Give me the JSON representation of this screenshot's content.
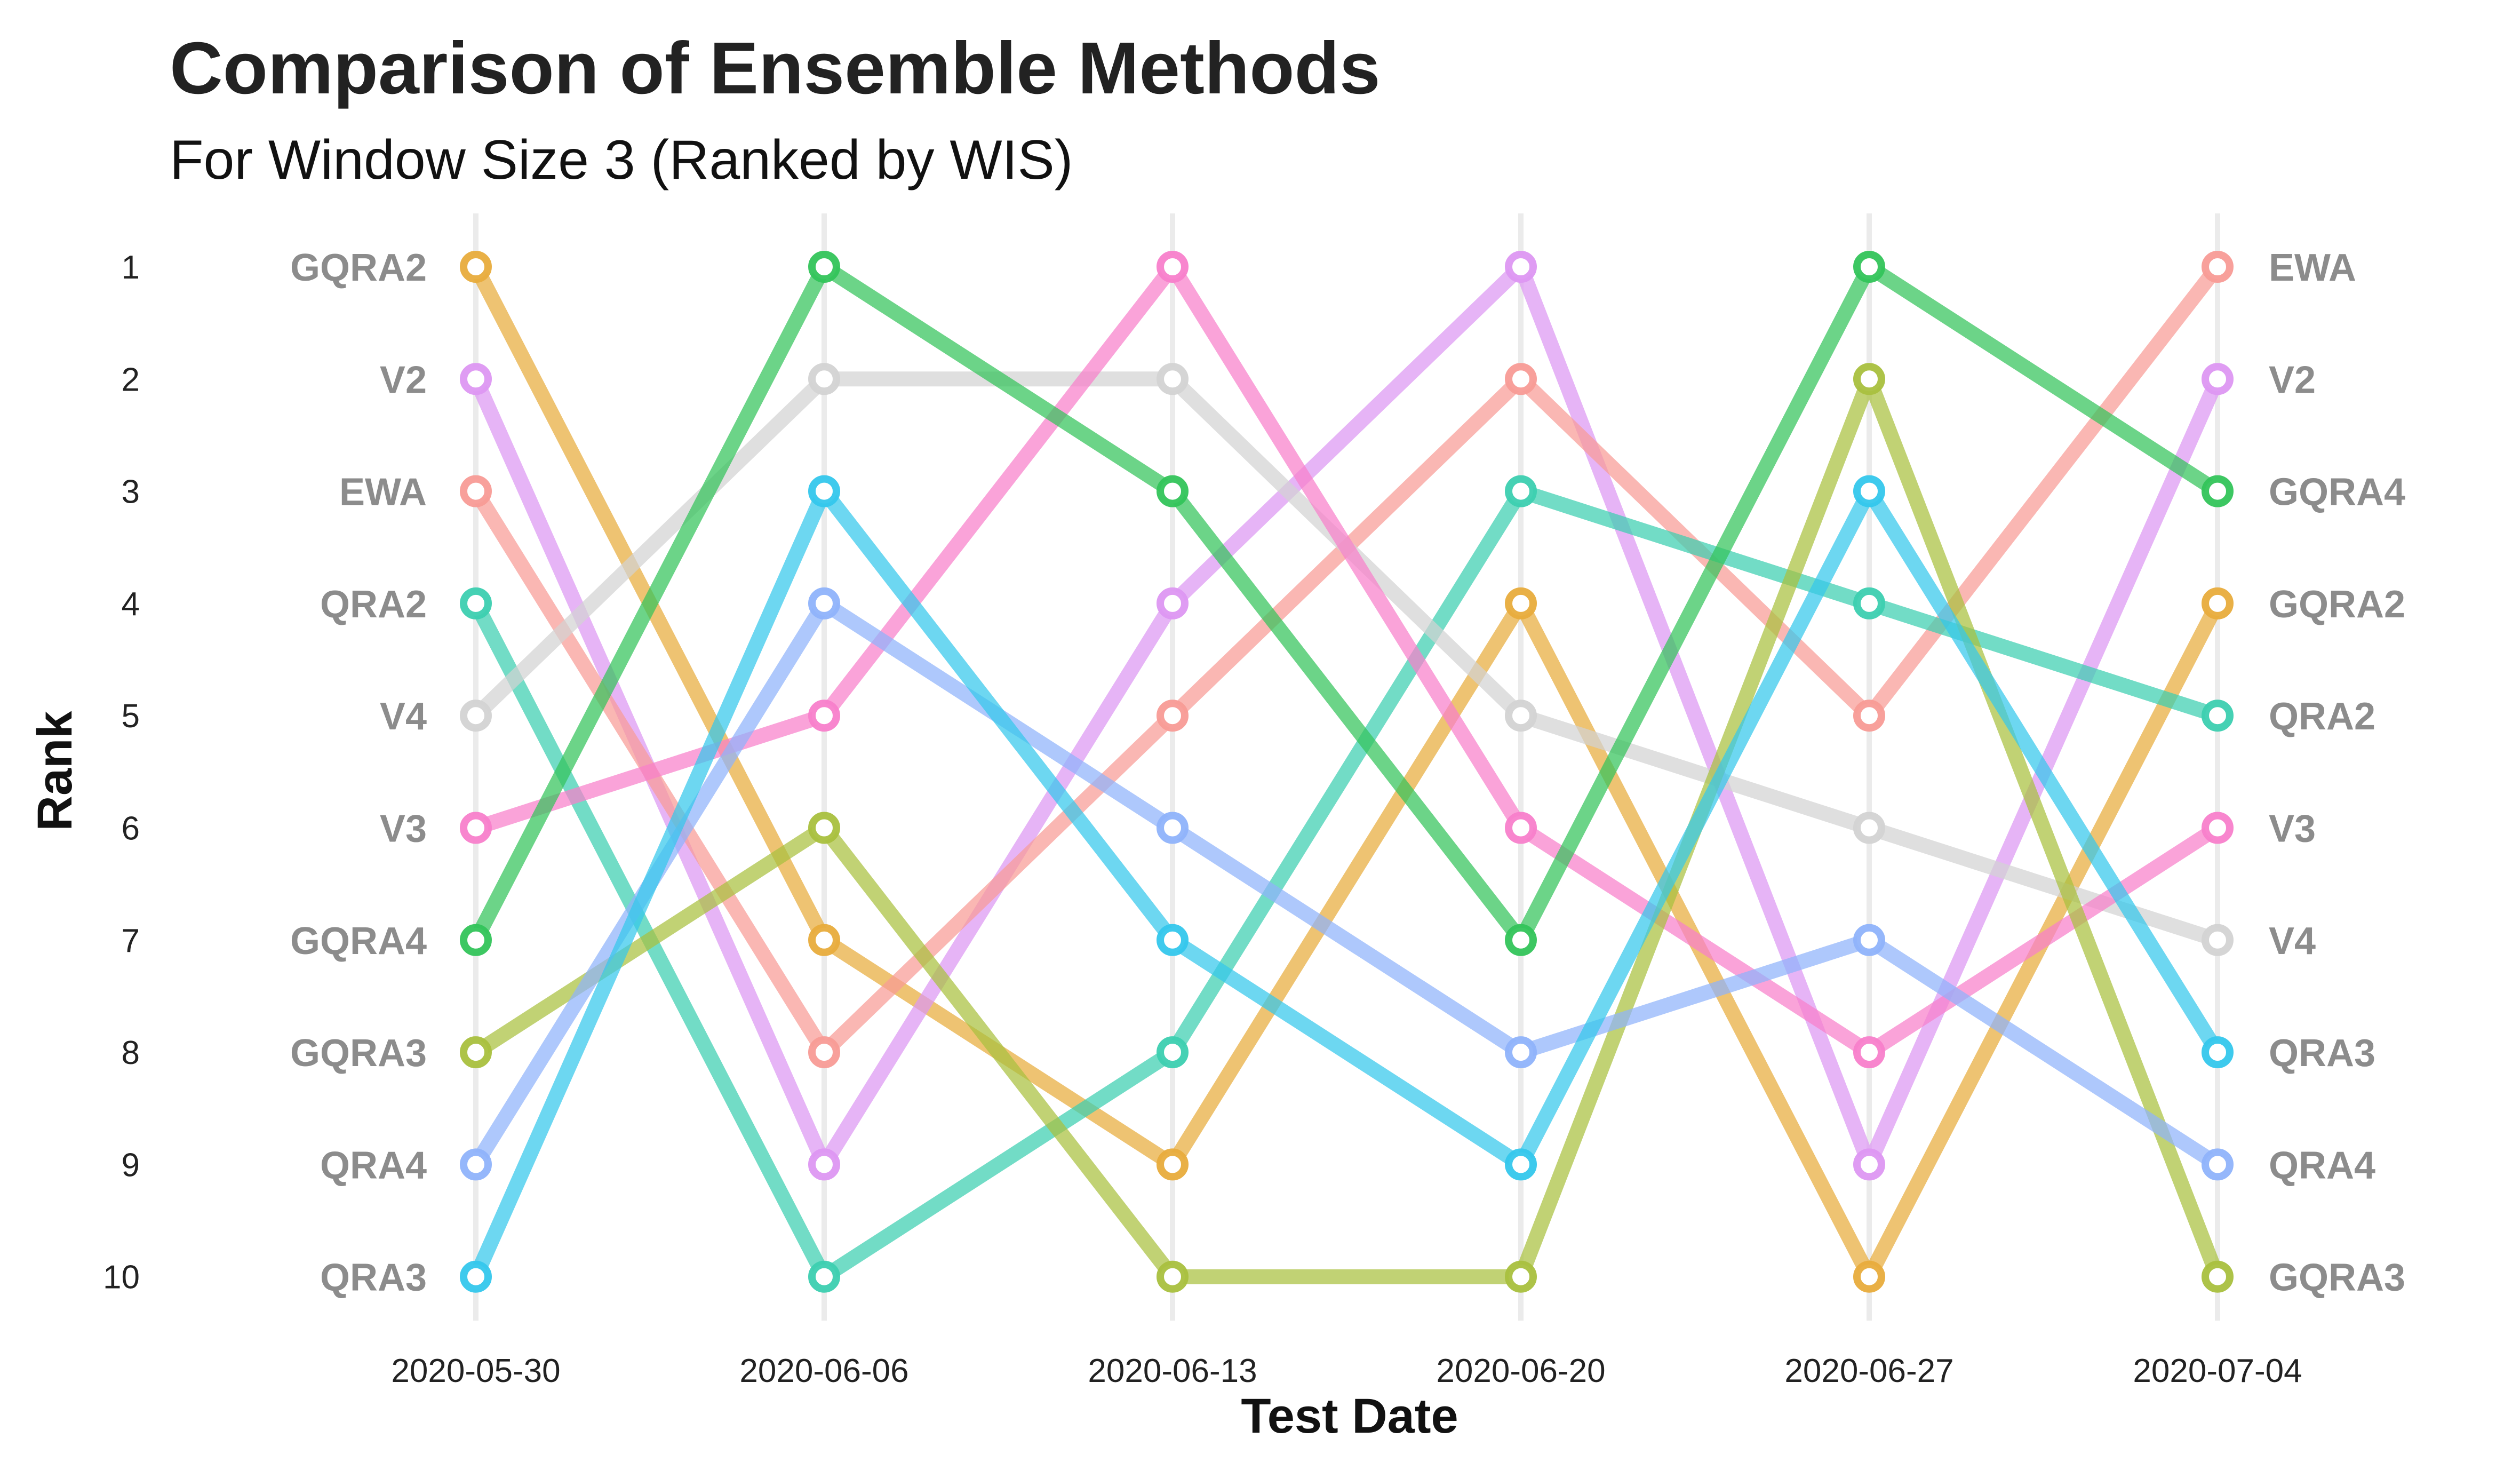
{
  "chart_data": {
    "type": "line",
    "title": "Comparison of Ensemble Methods",
    "subtitle": "For Window Size 3 (Ranked by WIS)",
    "xlabel": "Test Date",
    "ylabel": "Rank",
    "x": [
      "2020-05-30",
      "2020-06-06",
      "2020-06-13",
      "2020-06-20",
      "2020-06-27",
      "2020-07-04"
    ],
    "y_ticks": [
      "1",
      "2",
      "3",
      "4",
      "5",
      "6",
      "7",
      "8",
      "9",
      "10"
    ],
    "ylim": [
      1,
      10
    ],
    "y_reversed": true,
    "grid": "vertical",
    "legend": "none",
    "series": [
      {
        "name": "GQRA2",
        "color": "#e8ac3c",
        "values": [
          1,
          7,
          9,
          4,
          10,
          4
        ]
      },
      {
        "name": "V2",
        "color": "#dd97f2",
        "values": [
          2,
          9,
          4,
          1,
          9,
          2
        ]
      },
      {
        "name": "EWA",
        "color": "#f89b96",
        "values": [
          3,
          8,
          5,
          2,
          5,
          1
        ]
      },
      {
        "name": "QRA2",
        "color": "#3ccfb0",
        "values": [
          4,
          10,
          8,
          3,
          4,
          5
        ]
      },
      {
        "name": "V4",
        "color": "#d3d3d3",
        "values": [
          5,
          2,
          2,
          5,
          6,
          7
        ]
      },
      {
        "name": "V3",
        "color": "#f87fcb",
        "values": [
          6,
          5,
          1,
          6,
          8,
          6
        ]
      },
      {
        "name": "GQRA4",
        "color": "#33c45a",
        "values": [
          7,
          1,
          3,
          7,
          1,
          3
        ]
      },
      {
        "name": "GQRA3",
        "color": "#a9c03e",
        "values": [
          8,
          6,
          10,
          10,
          2,
          10
        ]
      },
      {
        "name": "QRA4",
        "color": "#8fb3fb",
        "values": [
          9,
          4,
          6,
          8,
          7,
          9
        ]
      },
      {
        "name": "QRA3",
        "color": "#34c7ec",
        "values": [
          10,
          3,
          7,
          9,
          3,
          8
        ]
      }
    ]
  }
}
